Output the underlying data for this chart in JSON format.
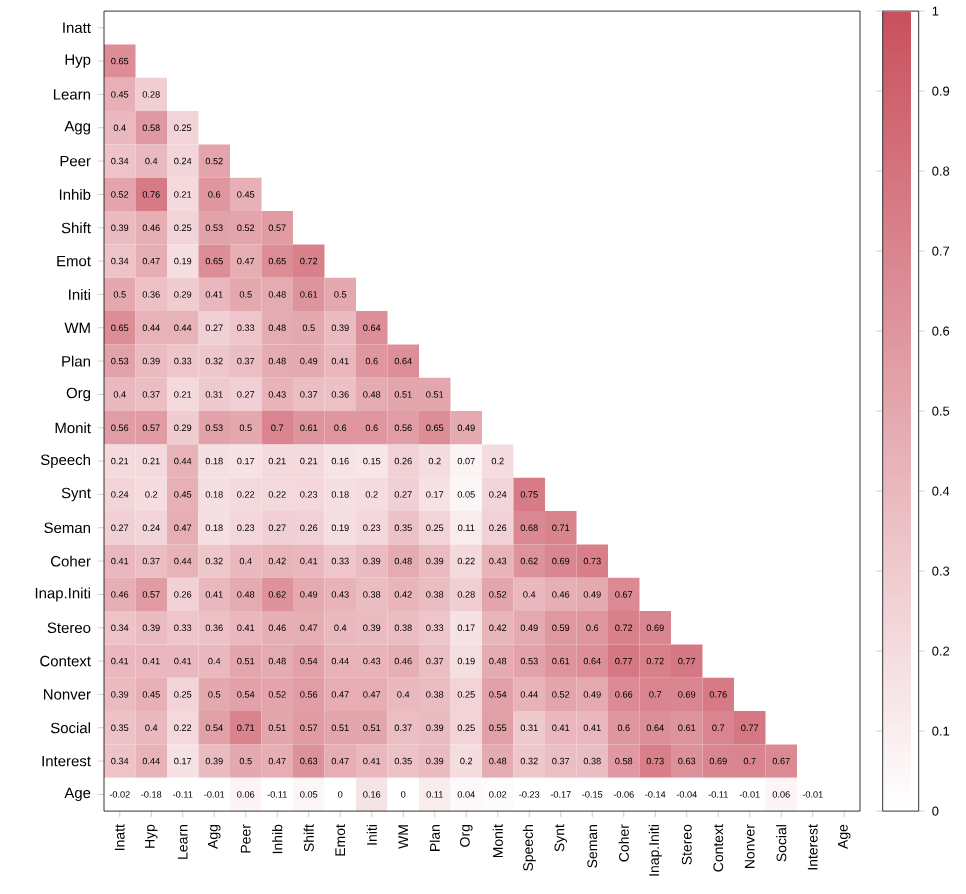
{
  "chart_data": {
    "type": "heatmap",
    "categories": [
      "Inatt",
      "Hyp",
      "Learn",
      "Agg",
      "Peer",
      "Inhib",
      "Shift",
      "Emot",
      "Initi",
      "WM",
      "Plan",
      "Org",
      "Monit",
      "Speech",
      "Synt",
      "Seman",
      "Coher",
      "Inap.Initi",
      "Stereo",
      "Context",
      "Nonver",
      "Social",
      "Interest",
      "Age"
    ],
    "y_categories": [
      "Inatt",
      "Hyp",
      "Learn",
      "Agg",
      "Peer",
      "Inhib",
      "Shift",
      "Emot",
      "Initi",
      "WM",
      "Plan",
      "Org",
      "Monit",
      "Speech",
      "Synt",
      "Seman",
      "Coher",
      "Inap.Initi",
      "Stereo",
      "Context",
      "Nonver",
      "Social",
      "Interest",
      "Age"
    ],
    "cells": [
      [
        null,
        null,
        null,
        null,
        null,
        null,
        null,
        null,
        null,
        null,
        null,
        null,
        null,
        null,
        null,
        null,
        null,
        null,
        null,
        null,
        null,
        null,
        null,
        null
      ],
      [
        0.65,
        null,
        null,
        null,
        null,
        null,
        null,
        null,
        null,
        null,
        null,
        null,
        null,
        null,
        null,
        null,
        null,
        null,
        null,
        null,
        null,
        null,
        null,
        null
      ],
      [
        0.45,
        0.28,
        null,
        null,
        null,
        null,
        null,
        null,
        null,
        null,
        null,
        null,
        null,
        null,
        null,
        null,
        null,
        null,
        null,
        null,
        null,
        null,
        null,
        null
      ],
      [
        0.4,
        0.58,
        0.25,
        null,
        null,
        null,
        null,
        null,
        null,
        null,
        null,
        null,
        null,
        null,
        null,
        null,
        null,
        null,
        null,
        null,
        null,
        null,
        null,
        null
      ],
      [
        0.34,
        0.4,
        0.24,
        0.52,
        null,
        null,
        null,
        null,
        null,
        null,
        null,
        null,
        null,
        null,
        null,
        null,
        null,
        null,
        null,
        null,
        null,
        null,
        null,
        null
      ],
      [
        0.52,
        0.76,
        0.21,
        0.6,
        0.45,
        null,
        null,
        null,
        null,
        null,
        null,
        null,
        null,
        null,
        null,
        null,
        null,
        null,
        null,
        null,
        null,
        null,
        null,
        null
      ],
      [
        0.39,
        0.46,
        0.25,
        0.53,
        0.52,
        0.57,
        null,
        null,
        null,
        null,
        null,
        null,
        null,
        null,
        null,
        null,
        null,
        null,
        null,
        null,
        null,
        null,
        null,
        null
      ],
      [
        0.34,
        0.47,
        0.19,
        0.65,
        0.47,
        0.65,
        0.72,
        null,
        null,
        null,
        null,
        null,
        null,
        null,
        null,
        null,
        null,
        null,
        null,
        null,
        null,
        null,
        null,
        null
      ],
      [
        0.5,
        0.36,
        0.29,
        0.41,
        0.5,
        0.48,
        0.61,
        0.5,
        null,
        null,
        null,
        null,
        null,
        null,
        null,
        null,
        null,
        null,
        null,
        null,
        null,
        null,
        null,
        null
      ],
      [
        0.65,
        0.44,
        0.44,
        0.27,
        0.33,
        0.48,
        0.5,
        0.39,
        0.64,
        null,
        null,
        null,
        null,
        null,
        null,
        null,
        null,
        null,
        null,
        null,
        null,
        null,
        null,
        null
      ],
      [
        0.53,
        0.39,
        0.33,
        0.32,
        0.37,
        0.48,
        0.49,
        0.41,
        0.6,
        0.64,
        null,
        null,
        null,
        null,
        null,
        null,
        null,
        null,
        null,
        null,
        null,
        null,
        null,
        null
      ],
      [
        0.4,
        0.37,
        0.21,
        0.31,
        0.27,
        0.43,
        0.37,
        0.36,
        0.48,
        0.51,
        0.51,
        null,
        null,
        null,
        null,
        null,
        null,
        null,
        null,
        null,
        null,
        null,
        null,
        null
      ],
      [
        0.56,
        0.57,
        0.29,
        0.53,
        0.5,
        0.7,
        0.61,
        0.6,
        0.6,
        0.56,
        0.65,
        0.49,
        null,
        null,
        null,
        null,
        null,
        null,
        null,
        null,
        null,
        null,
        null,
        null
      ],
      [
        0.21,
        0.21,
        0.44,
        0.18,
        0.17,
        0.21,
        0.21,
        0.16,
        0.15,
        0.26,
        0.2,
        0.07,
        0.2,
        null,
        null,
        null,
        null,
        null,
        null,
        null,
        null,
        null,
        null,
        null
      ],
      [
        0.24,
        0.2,
        0.45,
        0.18,
        0.22,
        0.22,
        0.23,
        0.18,
        0.2,
        0.27,
        0.17,
        0.05,
        0.24,
        0.75,
        null,
        null,
        null,
        null,
        null,
        null,
        null,
        null,
        null,
        null
      ],
      [
        0.27,
        0.24,
        0.47,
        0.18,
        0.23,
        0.27,
        0.26,
        0.19,
        0.23,
        0.35,
        0.25,
        0.11,
        0.26,
        0.68,
        0.71,
        null,
        null,
        null,
        null,
        null,
        null,
        null,
        null,
        null
      ],
      [
        0.41,
        0.37,
        0.44,
        0.32,
        0.4,
        0.42,
        0.41,
        0.33,
        0.39,
        0.48,
        0.39,
        0.22,
        0.43,
        0.62,
        0.69,
        0.73,
        null,
        null,
        null,
        null,
        null,
        null,
        null,
        null
      ],
      [
        0.46,
        0.57,
        0.26,
        0.41,
        0.48,
        0.62,
        0.49,
        0.43,
        0.38,
        0.42,
        0.38,
        0.28,
        0.52,
        0.4,
        0.46,
        0.49,
        0.67,
        null,
        null,
        null,
        null,
        null,
        null,
        null
      ],
      [
        0.34,
        0.39,
        0.33,
        0.36,
        0.41,
        0.46,
        0.47,
        0.4,
        0.39,
        0.38,
        0.33,
        0.17,
        0.42,
        0.49,
        0.59,
        0.6,
        0.72,
        0.69,
        null,
        null,
        null,
        null,
        null,
        null
      ],
      [
        0.41,
        0.41,
        0.41,
        0.4,
        0.51,
        0.48,
        0.54,
        0.44,
        0.43,
        0.46,
        0.37,
        0.19,
        0.48,
        0.53,
        0.61,
        0.64,
        0.77,
        0.72,
        0.77,
        null,
        null,
        null,
        null,
        null
      ],
      [
        0.39,
        0.45,
        0.25,
        0.5,
        0.54,
        0.52,
        0.56,
        0.47,
        0.47,
        0.4,
        0.38,
        0.25,
        0.54,
        0.44,
        0.52,
        0.49,
        0.66,
        0.7,
        0.69,
        0.76,
        null,
        null,
        null,
        null
      ],
      [
        0.35,
        0.4,
        0.22,
        0.54,
        0.71,
        0.51,
        0.57,
        0.51,
        0.51,
        0.37,
        0.39,
        0.25,
        0.55,
        0.31,
        0.41,
        0.41,
        0.6,
        0.64,
        0.61,
        0.7,
        0.77,
        null,
        null,
        null
      ],
      [
        0.34,
        0.44,
        0.17,
        0.39,
        0.5,
        0.47,
        0.63,
        0.47,
        0.41,
        0.35,
        0.39,
        0.2,
        0.48,
        0.32,
        0.37,
        0.38,
        0.58,
        0.73,
        0.63,
        0.69,
        0.7,
        0.67,
        null,
        null
      ],
      [
        -0.02,
        -0.18,
        -0.11,
        -0.01,
        0.06,
        -0.11,
        0.05,
        0,
        0.16,
        0,
        0.11,
        0.04,
        0.02,
        -0.23,
        -0.17,
        -0.15,
        -0.06,
        -0.14,
        -0.04,
        -0.11,
        -0.01,
        0.06,
        -0.01,
        null
      ]
    ],
    "data_labels": true,
    "color": "#c9505e",
    "clim": [
      0,
      1
    ],
    "cticks": [
      0,
      0.1,
      0.2,
      0.3,
      0.4,
      0.5,
      0.6,
      0.7,
      0.8,
      0.9,
      1
    ]
  }
}
